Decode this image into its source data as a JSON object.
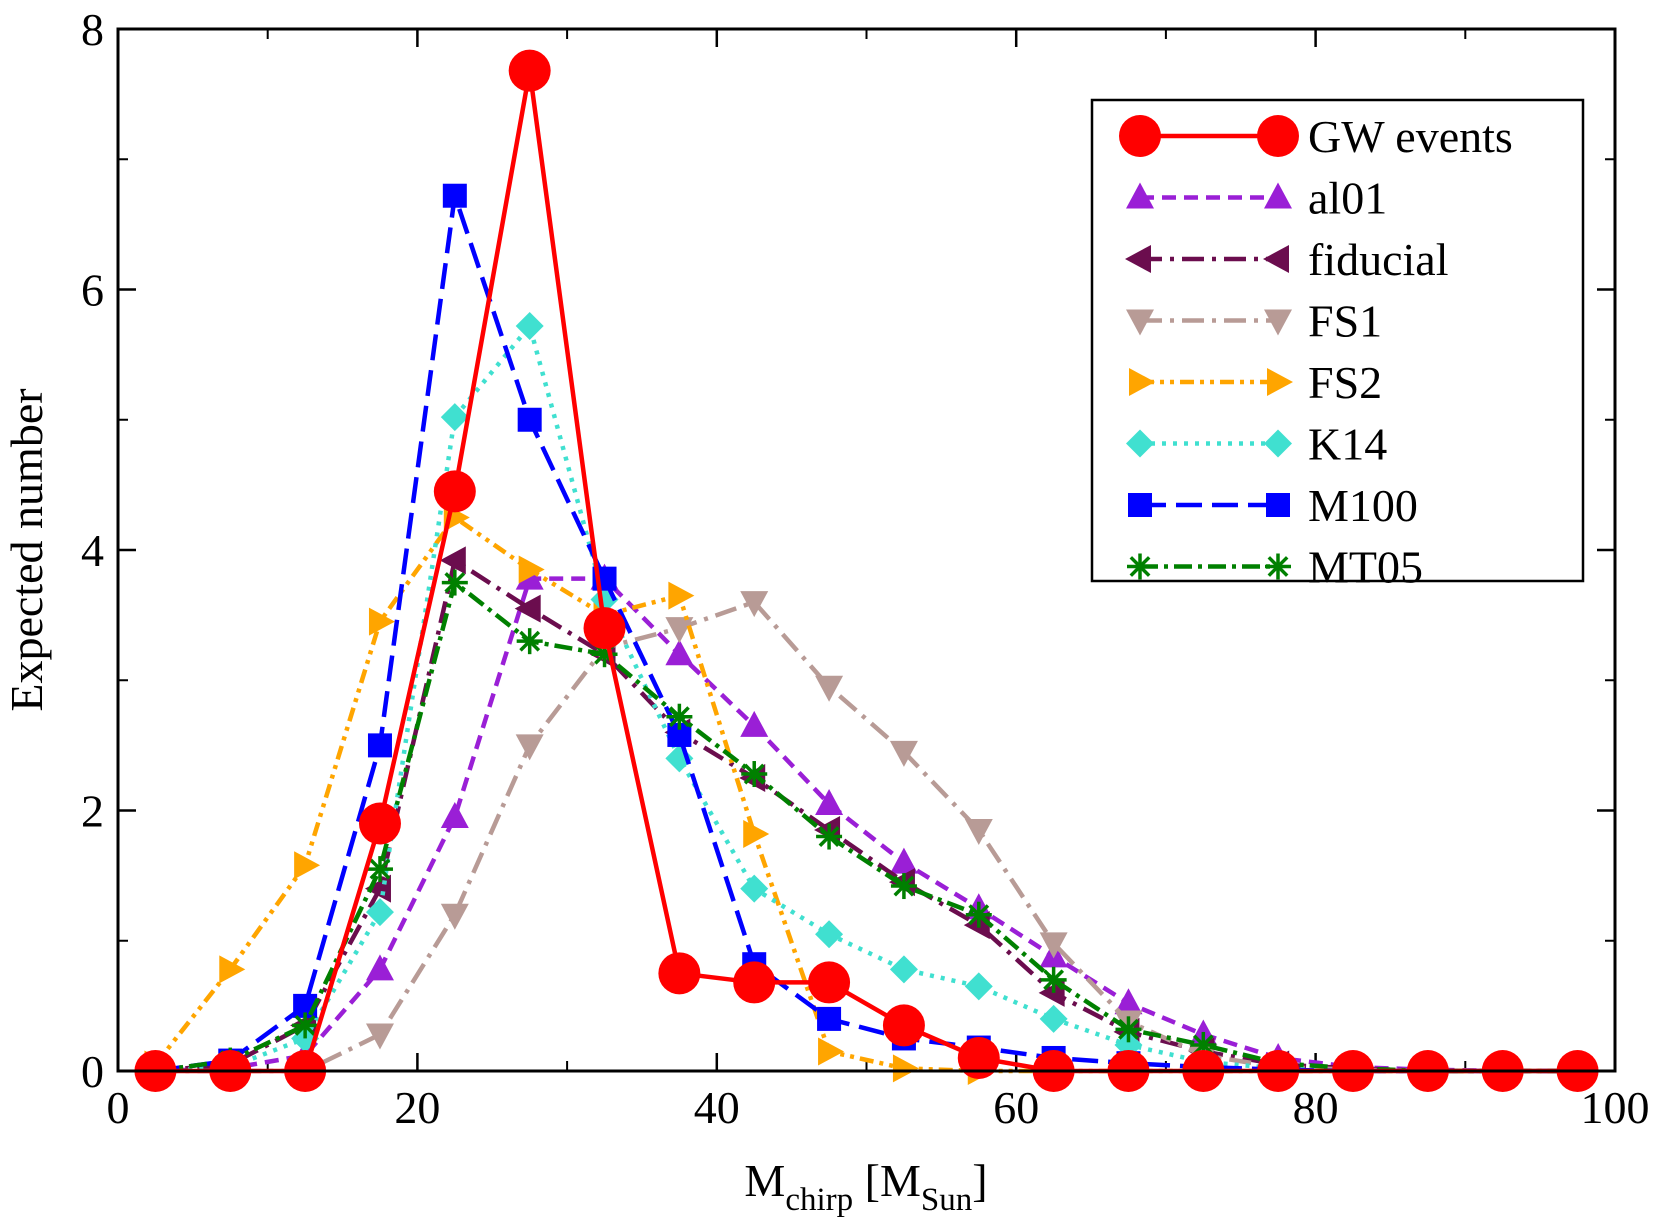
{
  "chart_data": {
    "type": "line",
    "title": "",
    "xlabel_main": "M",
    "xlabel_sub1": "chirp",
    "xlabel_mid": " [M",
    "xlabel_sub2": "Sun",
    "xlabel_end": "]",
    "ylabel": "Expected number",
    "xlim": [
      0,
      100
    ],
    "ylim": [
      0,
      8
    ],
    "x_ticks": [
      0,
      20,
      40,
      60,
      80,
      100
    ],
    "y_ticks": [
      0,
      2,
      4,
      6,
      8
    ],
    "x_tick_labels": [
      "0",
      "20",
      "40",
      "60",
      "80",
      "100"
    ],
    "y_tick_labels": [
      "0",
      "2",
      "4",
      "6",
      "8"
    ],
    "legend_position": "top-right",
    "x": [
      2.5,
      7.5,
      12.5,
      17.5,
      22.5,
      27.5,
      32.5,
      37.5,
      42.5,
      47.5,
      52.5,
      57.5,
      62.5,
      67.5,
      72.5,
      77.5,
      82.5,
      87.5,
      92.5,
      97.5
    ],
    "series": [
      {
        "name": "al01",
        "color": "#9a1fd6",
        "marker": "triangle-up",
        "dash": "14,8",
        "values": [
          0,
          0.02,
          0.12,
          0.78,
          1.95,
          3.78,
          3.78,
          3.2,
          2.65,
          2.05,
          1.6,
          1.25,
          0.88,
          0.52,
          0.28,
          0.1,
          0.03,
          0.01,
          0,
          0
        ]
      },
      {
        "name": "fiducial",
        "color": "#6b0d4e",
        "marker": "triangle-left",
        "dash": "22,8,4,8",
        "values": [
          0,
          0.05,
          0.35,
          1.4,
          3.92,
          3.55,
          3.2,
          2.6,
          2.25,
          1.85,
          1.45,
          1.12,
          0.6,
          0.3,
          0.15,
          0.05,
          0.02,
          0,
          0,
          0
        ]
      },
      {
        "name": "FS1",
        "color": "#b89b96",
        "marker": "triangle-down",
        "dash": "22,8,4,8",
        "values": [
          0,
          0,
          0,
          0.28,
          1.2,
          2.5,
          3.25,
          3.4,
          3.6,
          2.95,
          2.45,
          1.85,
          0.98,
          0.38,
          0.12,
          0.03,
          0.01,
          0,
          0,
          0
        ]
      },
      {
        "name": "FS2",
        "color": "#ffa500",
        "marker": "triangle-right",
        "dash": "14,6,4,6,4,6",
        "values": [
          0.05,
          0.78,
          1.58,
          3.45,
          4.25,
          3.85,
          3.5,
          3.65,
          1.82,
          0.15,
          0.02,
          0,
          0,
          0,
          0,
          0,
          0,
          0,
          0,
          0
        ]
      },
      {
        "name": "K14",
        "color": "#40e0d0",
        "marker": "diamond",
        "dash": "4,7",
        "values": [
          0,
          0.03,
          0.25,
          1.22,
          5.02,
          5.72,
          3.62,
          2.4,
          1.4,
          1.05,
          0.78,
          0.65,
          0.4,
          0.2,
          0.07,
          0.02,
          0,
          0,
          0,
          0
        ]
      },
      {
        "name": "M100",
        "color": "#0000ff",
        "marker": "square",
        "dash": "26,10",
        "values": [
          0,
          0.08,
          0.5,
          2.5,
          6.72,
          5.0,
          3.78,
          2.58,
          0.82,
          0.4,
          0.25,
          0.18,
          0.1,
          0.06,
          0.03,
          0.01,
          0,
          0,
          0,
          0
        ]
      },
      {
        "name": "MT05",
        "color": "#008000",
        "marker": "asterisk",
        "dash": "18,6,4,6",
        "values": [
          0,
          0.08,
          0.35,
          1.55,
          3.75,
          3.3,
          3.2,
          2.72,
          2.28,
          1.8,
          1.42,
          1.2,
          0.7,
          0.32,
          0.2,
          0.06,
          0.02,
          0,
          0,
          0
        ]
      },
      {
        "name": "GW events",
        "color": "#ff0000",
        "marker": "circle",
        "dash": "",
        "values": [
          0,
          0,
          0,
          1.9,
          4.45,
          7.68,
          3.4,
          0.75,
          0.68,
          0.68,
          0.35,
          0.1,
          0,
          0,
          0,
          0,
          0,
          0,
          0,
          0
        ]
      }
    ],
    "legend_order": [
      "GW events",
      "al01",
      "fiducial",
      "FS1",
      "FS2",
      "K14",
      "M100",
      "MT05"
    ]
  }
}
